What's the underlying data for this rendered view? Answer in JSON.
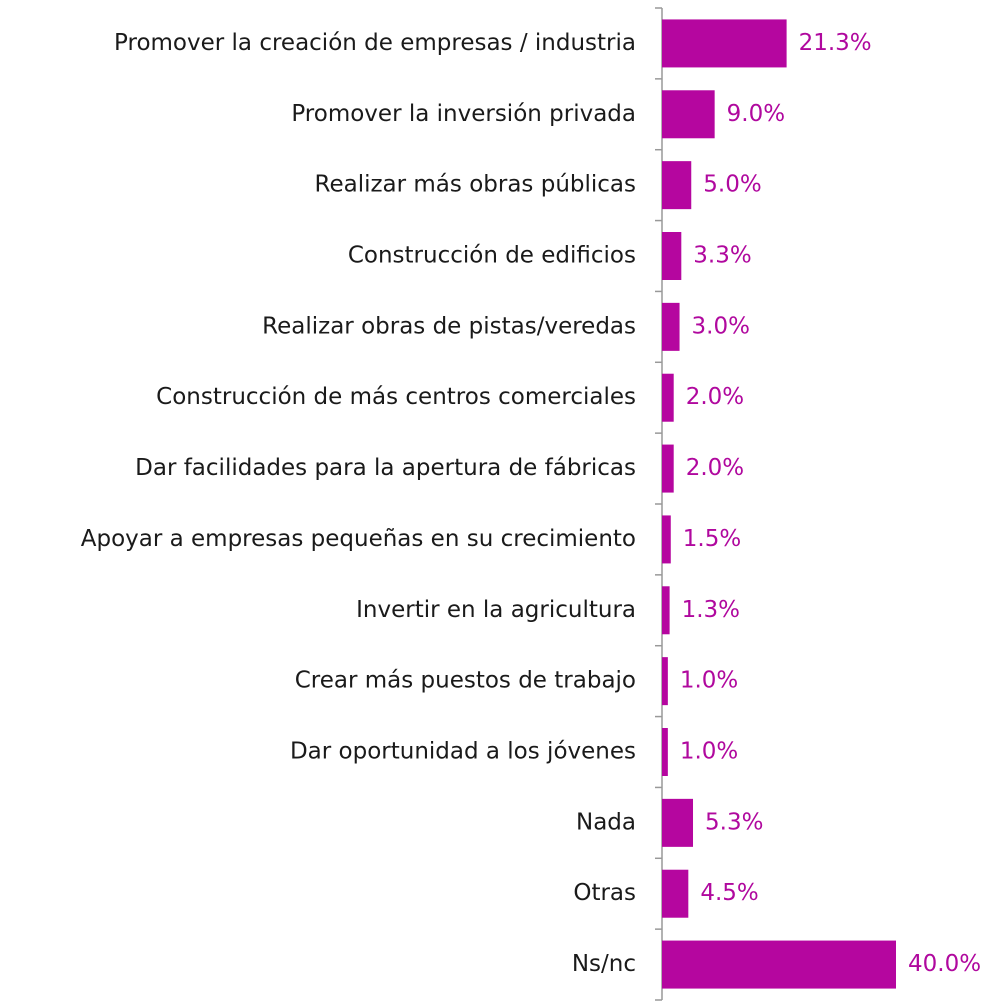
{
  "chart_data": {
    "type": "hbar",
    "color": "#b5069f",
    "categories": [
      "Promover la creación de empresas / industria",
      "Promover la inversión privada",
      "Realizar más obras públicas",
      "Construcción de edificios",
      "Realizar obras de pistas/veredas",
      "Construcción de más centros comerciales",
      "Dar facilidades para la apertura de fábricas",
      "Apoyar a empresas pequeñas en su crecimiento",
      "Invertir en la agricultura",
      "Crear más puestos de trabajo",
      "Dar oportunidad a los jóvenes",
      "Nada",
      "Otras",
      "Ns/nc"
    ],
    "values": [
      21.3,
      9.0,
      5.0,
      3.3,
      3.0,
      2.0,
      2.0,
      1.5,
      1.3,
      1.0,
      1.0,
      5.3,
      4.5,
      40.0
    ],
    "value_labels": [
      "21.3%",
      "9.0%",
      "5.0%",
      "3.3%",
      "3.0%",
      "2.0%",
      "2.0%",
      "1.5%",
      "1.3%",
      "1.0%",
      "1.0%",
      "5.3%",
      "4.5%",
      "40.0%"
    ]
  }
}
